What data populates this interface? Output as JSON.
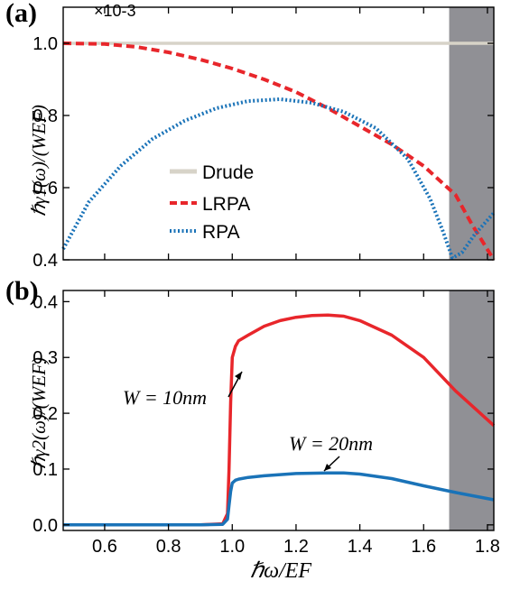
{
  "chart_data": [
    {
      "panel": "(a)",
      "type": "line",
      "xlim": [
        0.47,
        1.82
      ],
      "ylim": [
        0.4,
        1.1
      ],
      "yscale_note": "×10-3",
      "ylabel": "ℏγ1(ω)/(WEF)",
      "xticks_shown": false,
      "yticks": [
        "0.4",
        "0.6",
        "0.8",
        "1.0"
      ],
      "shaded_region": [
        1.68,
        1.82
      ],
      "legend": {
        "position": "left",
        "entries": [
          "Drude",
          "LRPA",
          "RPA"
        ]
      },
      "series": [
        {
          "name": "Drude",
          "color": "#d7d3c8",
          "style": "solid",
          "x": [
            0.47,
            1.82
          ],
          "y": [
            1.0,
            1.0
          ]
        },
        {
          "name": "LRPA",
          "color": "#e8262b",
          "style": "dashed",
          "x": [
            0.47,
            0.6,
            0.7,
            0.8,
            0.9,
            1.0,
            1.1,
            1.2,
            1.3,
            1.4,
            1.5,
            1.6,
            1.7,
            1.75,
            1.82
          ],
          "y": [
            1.0,
            0.998,
            0.99,
            0.975,
            0.955,
            0.93,
            0.9,
            0.865,
            0.82,
            0.77,
            0.72,
            0.66,
            0.58,
            0.5,
            0.4
          ]
        },
        {
          "name": "RPA",
          "color": "#1a73b8",
          "style": "dotted",
          "x": [
            0.47,
            0.55,
            0.65,
            0.75,
            0.85,
            0.95,
            1.05,
            1.15,
            1.25,
            1.35,
            1.45,
            1.55,
            1.62,
            1.66,
            1.69,
            1.72,
            1.76,
            1.82
          ],
          "y": [
            0.43,
            0.56,
            0.66,
            0.735,
            0.785,
            0.82,
            0.84,
            0.845,
            0.835,
            0.81,
            0.765,
            0.68,
            0.57,
            0.48,
            0.405,
            0.42,
            0.47,
            0.53
          ]
        }
      ]
    },
    {
      "panel": "(b)",
      "type": "line",
      "xlim": [
        0.47,
        1.82
      ],
      "ylim": [
        -0.01,
        0.42
      ],
      "xlabel": "ℏω/EF",
      "ylabel": "ℏγ2(ω)/(WEF)",
      "xticks": [
        "0.6",
        "0.8",
        "1.0",
        "1.2",
        "1.4",
        "1.6",
        "1.8"
      ],
      "yticks": [
        "0.0",
        "0.1",
        "0.2",
        "0.3",
        "0.4"
      ],
      "shaded_region": [
        1.68,
        1.82
      ],
      "annotations": [
        "W = 10nm",
        "W = 20nm"
      ],
      "series": [
        {
          "name": "W = 10nm",
          "color": "#e8262b",
          "style": "solid",
          "x": [
            0.47,
            0.9,
            0.97,
            0.985,
            0.99,
            0.995,
            1.0,
            1.01,
            1.02,
            1.05,
            1.1,
            1.15,
            1.2,
            1.25,
            1.3,
            1.35,
            1.4,
            1.5,
            1.6,
            1.7,
            1.82
          ],
          "y": [
            0.0,
            0.0,
            0.002,
            0.02,
            0.1,
            0.22,
            0.3,
            0.32,
            0.33,
            0.34,
            0.356,
            0.366,
            0.372,
            0.375,
            0.376,
            0.374,
            0.366,
            0.34,
            0.3,
            0.24,
            0.178
          ]
        },
        {
          "name": "W = 20nm",
          "color": "#1a73b8",
          "style": "solid",
          "x": [
            0.47,
            0.9,
            0.97,
            0.985,
            0.99,
            0.995,
            1.0,
            1.01,
            1.02,
            1.05,
            1.1,
            1.2,
            1.3,
            1.35,
            1.4,
            1.5,
            1.6,
            1.7,
            1.82
          ],
          "y": [
            0.0,
            0.0,
            0.001,
            0.01,
            0.035,
            0.06,
            0.075,
            0.08,
            0.082,
            0.085,
            0.088,
            0.092,
            0.093,
            0.093,
            0.091,
            0.083,
            0.07,
            0.058,
            0.045
          ]
        }
      ]
    }
  ]
}
